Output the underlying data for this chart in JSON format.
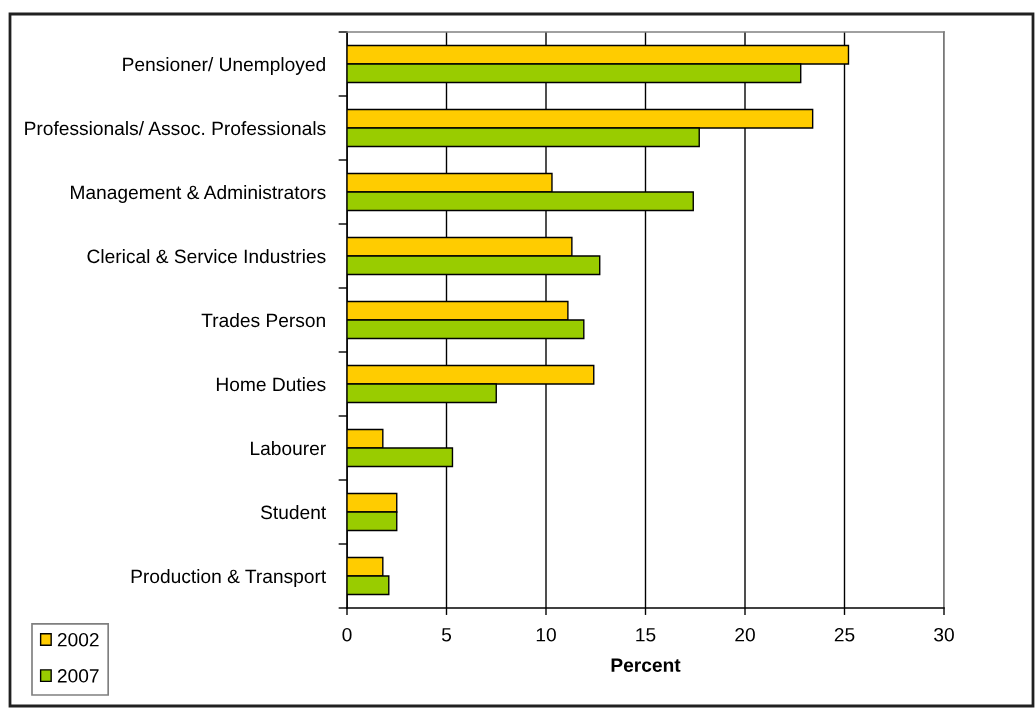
{
  "chart_data": {
    "type": "bar",
    "orientation": "horizontal",
    "categories": [
      "Pensioner/ Unemployed",
      "Professionals/ Assoc. Professionals",
      "Management & Administrators",
      "Clerical & Service Industries",
      "Trades Person",
      "Home Duties",
      "Labourer",
      "Student",
      "Production & Transport"
    ],
    "series": [
      {
        "name": "2002",
        "color": "#ffcc00",
        "values": [
          25.2,
          23.4,
          10.3,
          11.3,
          11.1,
          12.4,
          1.8,
          2.5,
          1.8
        ]
      },
      {
        "name": "2007",
        "color": "#99cc00",
        "values": [
          22.8,
          17.7,
          17.4,
          12.7,
          11.9,
          7.5,
          5.3,
          2.5,
          2.1
        ]
      }
    ],
    "xlabel": "Percent",
    "xlim": [
      0,
      30
    ],
    "xticks": [
      0,
      5,
      10,
      15,
      20,
      25,
      30
    ],
    "grid": "x",
    "legend": "bottom left"
  }
}
